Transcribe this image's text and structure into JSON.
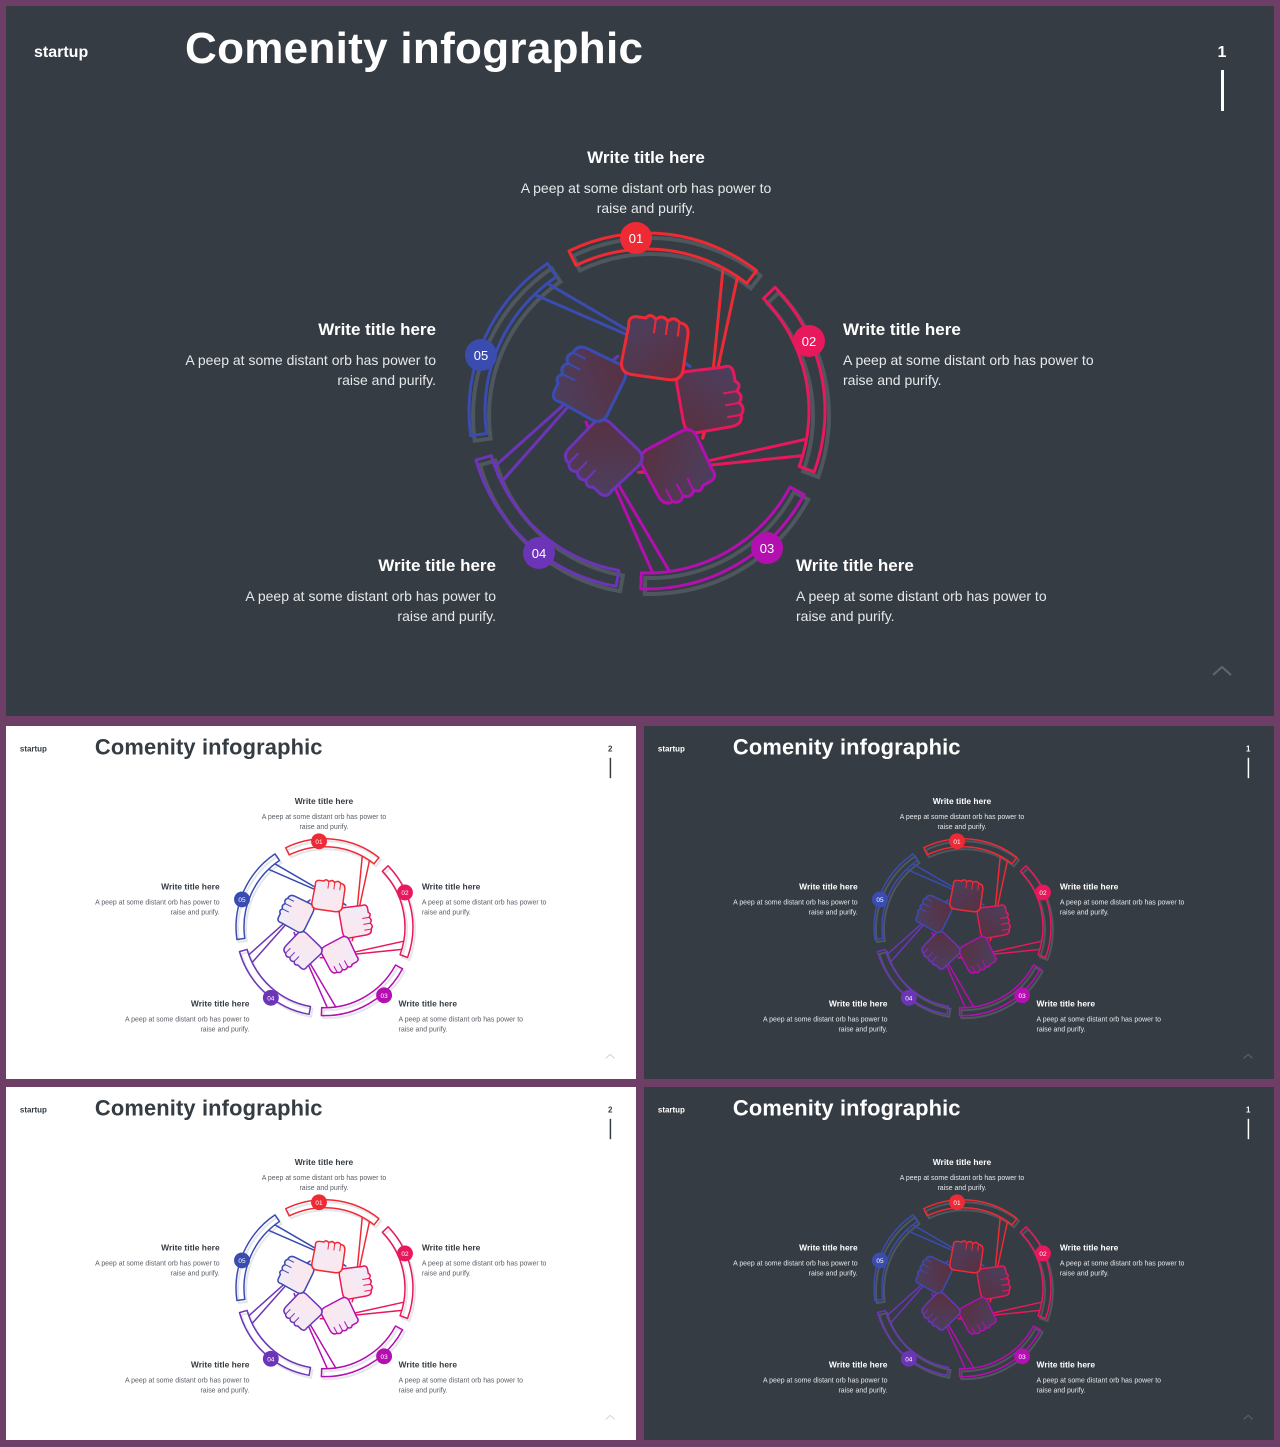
{
  "slides": [
    {
      "theme": "dark",
      "brand": "startup",
      "title": "Comenity infographic",
      "page": "1"
    },
    {
      "theme": "light",
      "brand": "startup",
      "title": "Comenity infographic",
      "page": "2"
    },
    {
      "theme": "dark",
      "brand": "startup",
      "title": "Comenity infographic",
      "page": "1"
    },
    {
      "theme": "light",
      "brand": "startup",
      "title": "Comenity infographic",
      "page": "2"
    },
    {
      "theme": "dark",
      "brand": "startup",
      "title": "Comenity infographic",
      "page": "1"
    }
  ],
  "steps": [
    {
      "num": "01",
      "title": "Write title here",
      "desc": "A peep at some distant orb has power to raise and purify.",
      "color": "#ee2a35"
    },
    {
      "num": "02",
      "title": "Write title here",
      "desc": "A peep at some distant orb has power to raise and purify.",
      "color": "#e8185c"
    },
    {
      "num": "03",
      "title": "Write title here",
      "desc": "A peep at some distant orb has power to raise and purify.",
      "color": "#b40fb0"
    },
    {
      "num": "04",
      "title": "Write title here",
      "desc": "A peep at some distant orb has power to raise and purify.",
      "color": "#6c35b8"
    },
    {
      "num": "05",
      "title": "Write title here",
      "desc": "A peep at some distant orb has power to raise and purify.",
      "color": "#3a4cb0"
    }
  ],
  "icons": {
    "page_bar": "vertical-bar-icon",
    "scroll_top": "chevron-up-icon",
    "hands": "raised-fists-icon"
  }
}
